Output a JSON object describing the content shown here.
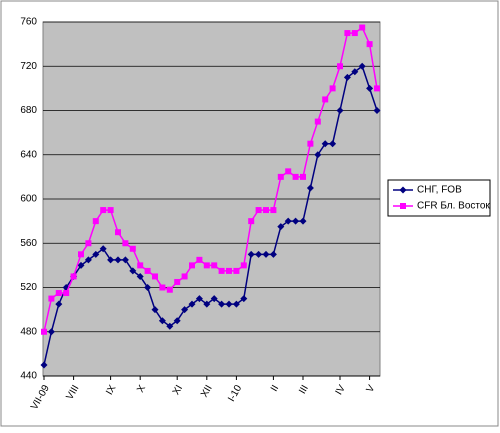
{
  "chart_data": {
    "type": "line",
    "categories": [
      "VII-09",
      null,
      null,
      null,
      "VIII",
      null,
      null,
      null,
      null,
      "IX",
      null,
      null,
      null,
      "X",
      null,
      null,
      null,
      null,
      "XI",
      null,
      null,
      null,
      "XII",
      null,
      null,
      null,
      "I-10",
      null,
      null,
      null,
      null,
      "II",
      null,
      null,
      null,
      "III",
      null,
      null,
      null,
      null,
      "IV",
      null,
      null,
      null,
      "V",
      null
    ],
    "series": [
      {
        "name": "СНГ, FOB",
        "color": "#000080",
        "values": [
          450,
          480,
          505,
          520,
          530,
          540,
          545,
          550,
          555,
          545,
          545,
          545,
          535,
          530,
          520,
          500,
          490,
          485,
          490,
          500,
          505,
          510,
          505,
          510,
          505,
          505,
          505,
          510,
          550,
          550,
          550,
          550,
          575,
          580,
          580,
          580,
          610,
          640,
          650,
          650,
          680,
          710,
          715,
          720,
          700,
          680
        ]
      },
      {
        "name": "CFR Бл. Восток",
        "color": "#ff00ff",
        "values": [
          480,
          510,
          515,
          515,
          530,
          550,
          560,
          580,
          590,
          590,
          570,
          560,
          555,
          540,
          535,
          530,
          520,
          518,
          525,
          530,
          540,
          545,
          540,
          540,
          535,
          535,
          535,
          540,
          580,
          590,
          590,
          590,
          620,
          625,
          620,
          620,
          650,
          670,
          690,
          700,
          720,
          750,
          750,
          755,
          740,
          700
        ]
      }
    ],
    "ylim": [
      440,
      760
    ],
    "yticks": [
      440,
      480,
      520,
      560,
      600,
      640,
      680,
      720,
      760
    ],
    "grid": true,
    "legend": "right"
  }
}
